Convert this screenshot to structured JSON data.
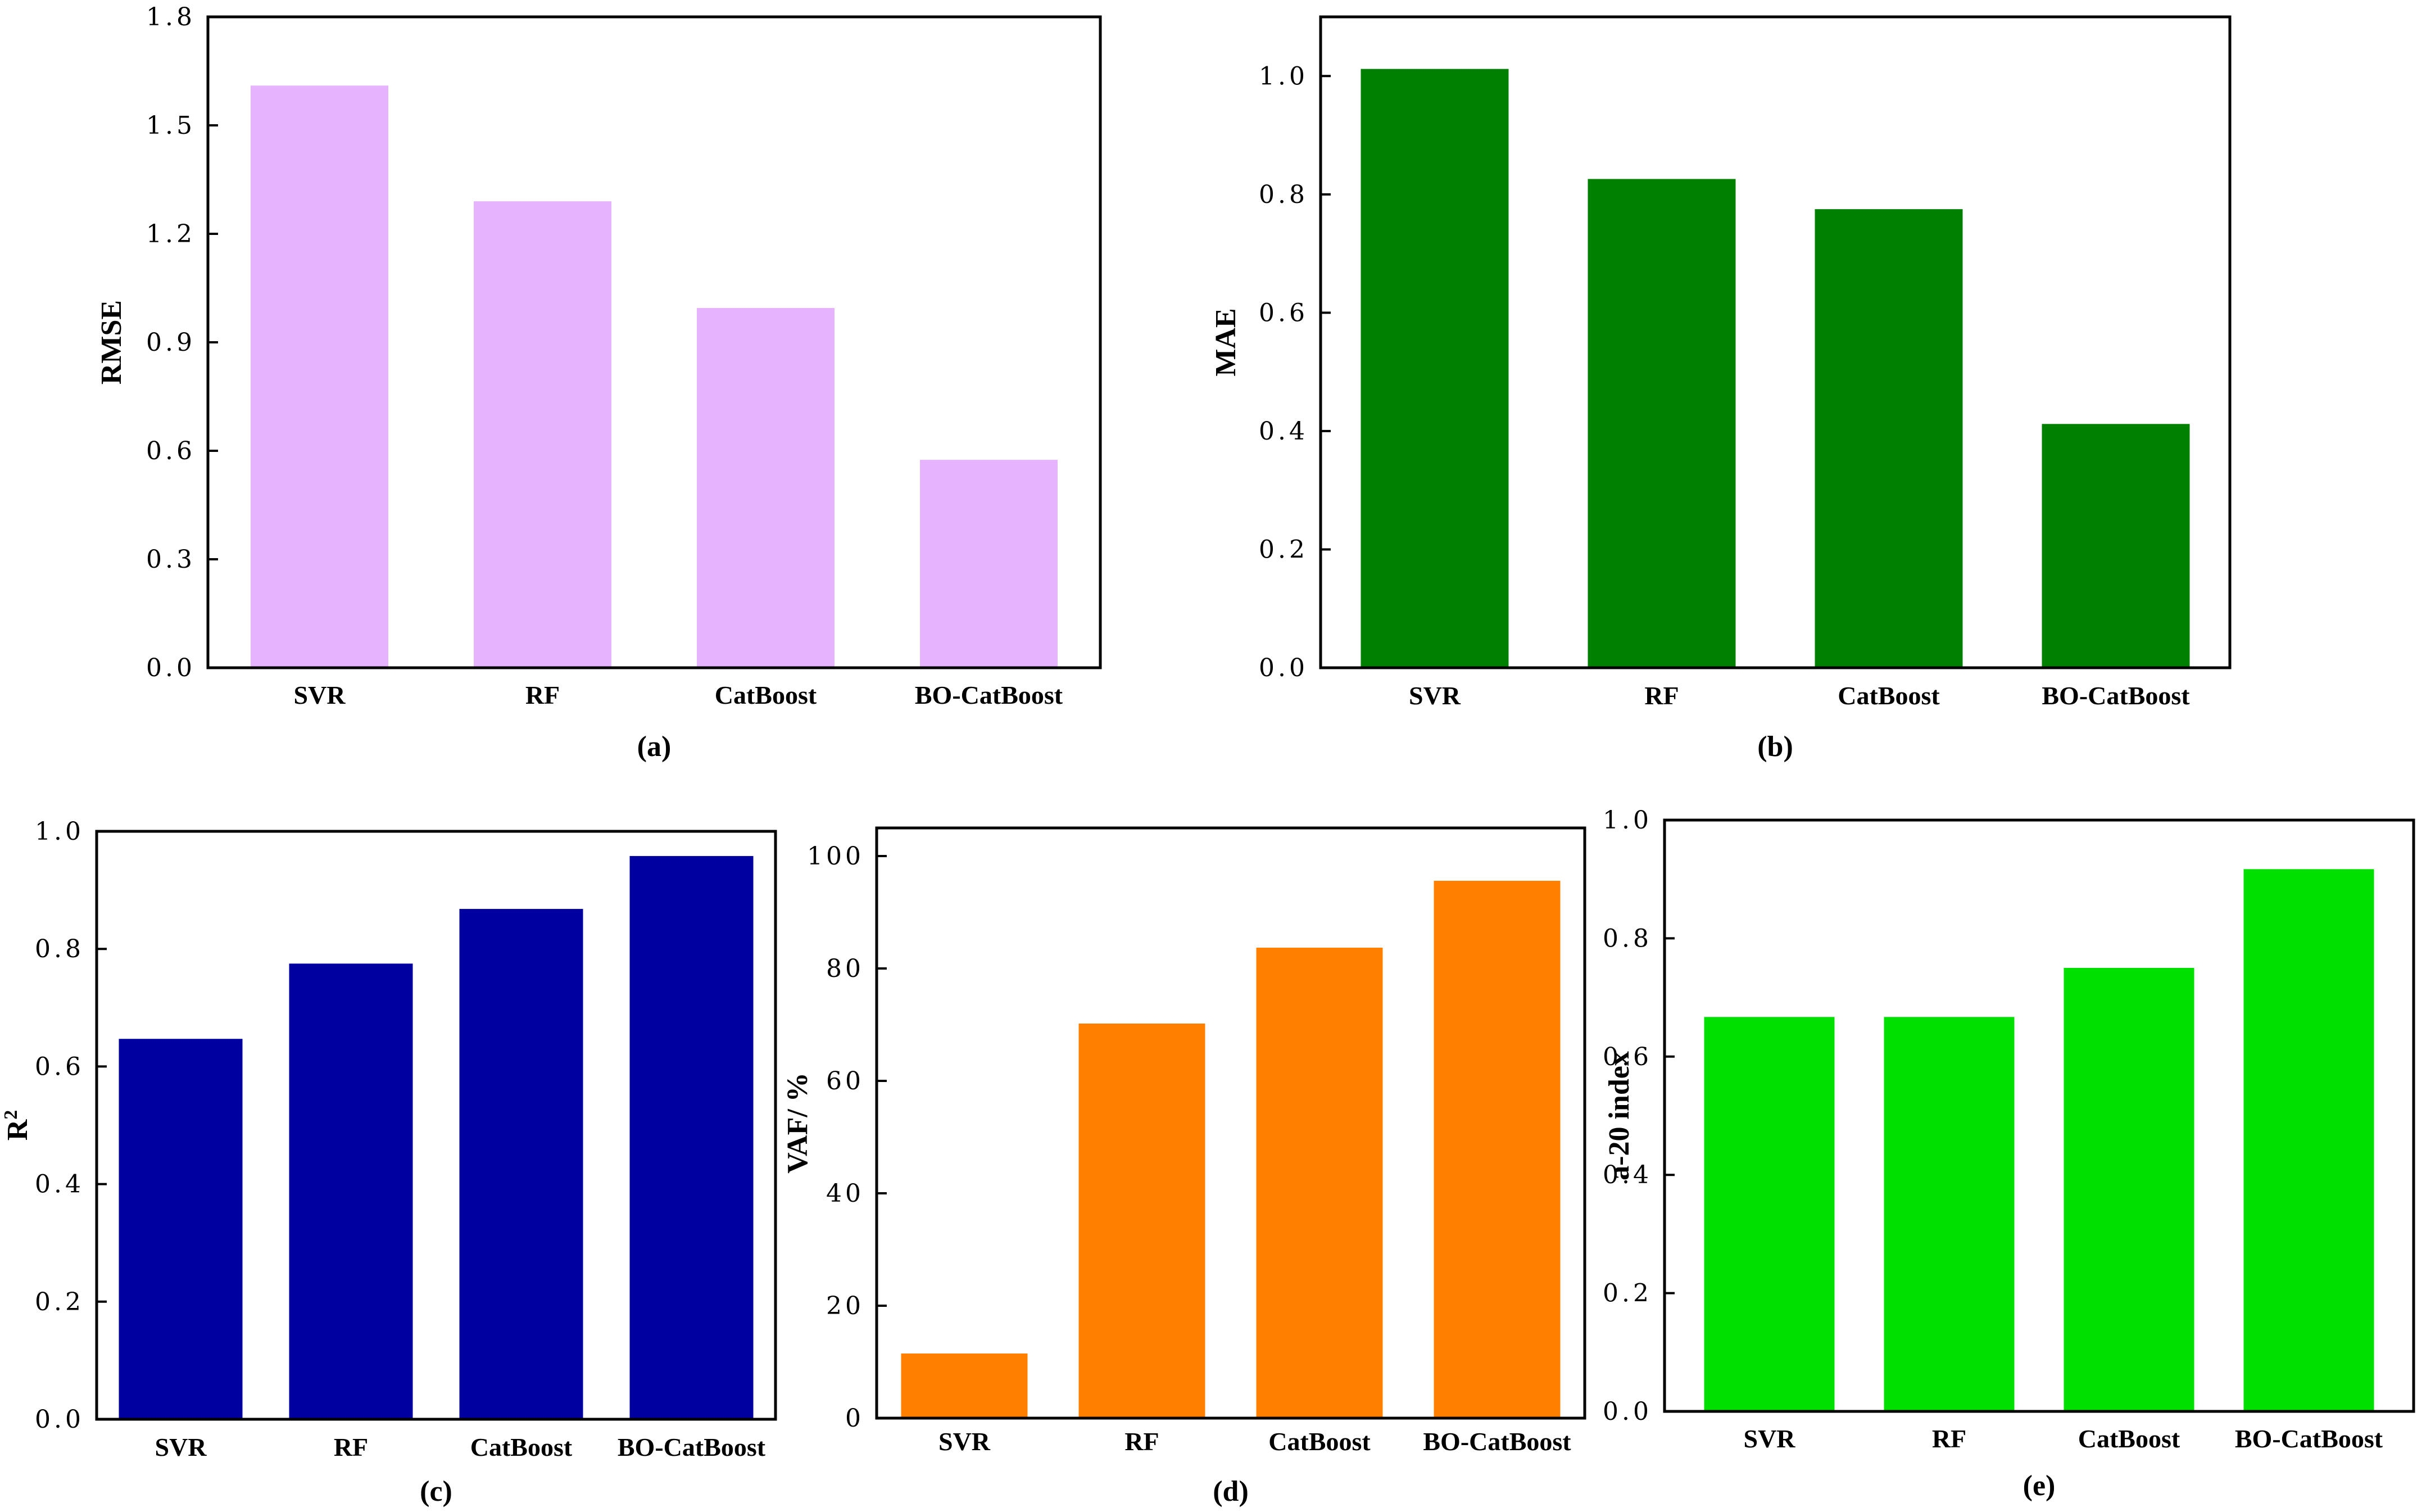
{
  "chart_data": [
    {
      "panel": "a",
      "type": "bar",
      "caption": "(a)",
      "ylabel": "RMSE",
      "categories": [
        "SVR",
        "RF",
        "CatBoost",
        "BO-CatBoost"
      ],
      "values": [
        1.61,
        1.29,
        0.995,
        0.575
      ],
      "ylim": [
        0,
        1.8
      ],
      "yticks": [
        "0.0",
        "0.3",
        "0.6",
        "0.9",
        "1.2",
        "1.5",
        "1.8"
      ],
      "color": "#E6B3FF"
    },
    {
      "panel": "b",
      "type": "bar",
      "caption": "(b)",
      "ylabel": "MAE",
      "categories": [
        "SVR",
        "RF",
        "CatBoost",
        "BO-CatBoost"
      ],
      "values": [
        1.012,
        0.826,
        0.775,
        0.412
      ],
      "ylim": [
        0,
        1.1
      ],
      "yticks": [
        "0.0",
        "0.2",
        "0.4",
        "0.6",
        "0.8",
        "1.0"
      ],
      "color": "#008000"
    },
    {
      "panel": "c",
      "type": "bar",
      "caption": "(c)",
      "ylabel": "R",
      "ylabel_sup": "2",
      "categories": [
        "SVR",
        "RF",
        "CatBoost",
        "BO-CatBoost"
      ],
      "values": [
        0.647,
        0.775,
        0.868,
        0.958
      ],
      "ylim": [
        0,
        1.0
      ],
      "yticks": [
        "0.0",
        "0.2",
        "0.4",
        "0.6",
        "0.8",
        "1.0"
      ],
      "color": "#0000A0"
    },
    {
      "panel": "d",
      "type": "bar",
      "caption": "(d)",
      "ylabel": "VAF/ %",
      "categories": [
        "SVR",
        "RF",
        "CatBoost",
        "BO-CatBoost"
      ],
      "values": [
        11.5,
        70.2,
        83.7,
        95.6
      ],
      "ylim": [
        0,
        105
      ],
      "yticks": [
        "0",
        "20",
        "40",
        "60",
        "80",
        "100"
      ],
      "color": "#FF8000"
    },
    {
      "panel": "e",
      "type": "bar",
      "caption": "(e)",
      "ylabel": "a-20 index",
      "categories": [
        "SVR",
        "RF",
        "CatBoost",
        "BO-CatBoost"
      ],
      "values": [
        0.667,
        0.667,
        0.75,
        0.917
      ],
      "ylim": [
        0,
        1.0
      ],
      "yticks": [
        "0.0",
        "0.2",
        "0.4",
        "0.6",
        "0.8",
        "1.0"
      ],
      "color": "#00E000"
    }
  ]
}
